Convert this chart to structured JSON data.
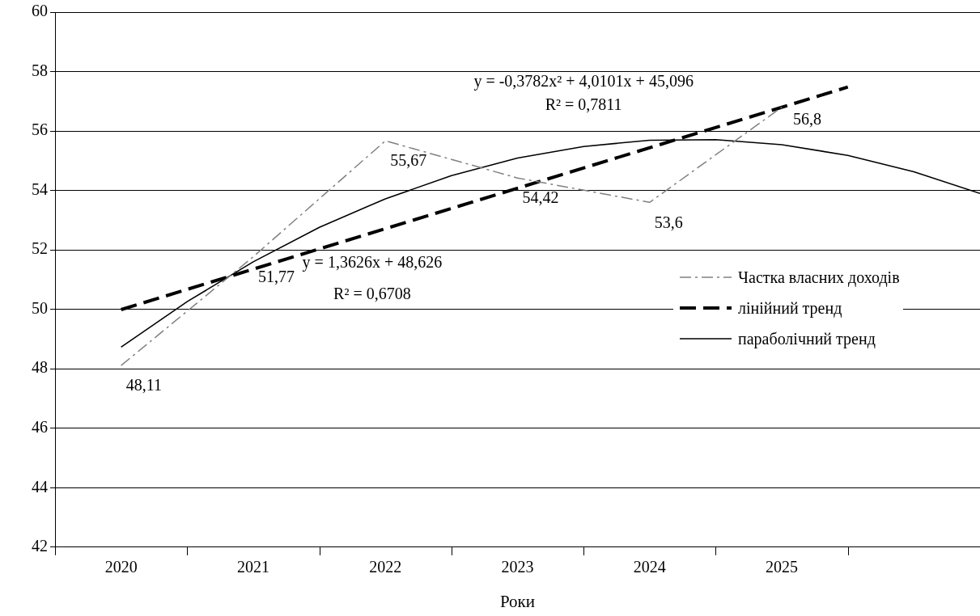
{
  "chart_data": {
    "type": "line",
    "xlabel": "Роки",
    "xlim": [
      2019.5,
      2026.5
    ],
    "xticks": [
      2020,
      2021,
      2022,
      2023,
      2024,
      2025
    ],
    "ylim": [
      42,
      60
    ],
    "yticks": [
      42,
      44,
      46,
      48,
      50,
      52,
      54,
      56,
      58,
      60
    ],
    "grid": "y",
    "legend": "right",
    "marker": "none",
    "series": [
      {
        "name": "Частка власних доходів",
        "color": "#808080",
        "line_style": "dashed",
        "x": [
          2020,
          2021,
          2022,
          2023,
          2024,
          2025
        ],
        "values": [
          48.11,
          51.77,
          55.67,
          54.42,
          53.6,
          56.8
        ],
        "value_labels": [
          "48,11",
          "51,77",
          "55,67",
          "54,42",
          "53,6",
          "56,8"
        ]
      },
      {
        "name": "лінійний тренд",
        "color": "#000000",
        "line_style": "dashed",
        "x": [
          2020,
          2025.5
        ],
        "values": [
          49.99,
          57.48
        ]
      },
      {
        "name": "параболічний тренд",
        "color": "#000000",
        "line_style": "solid",
        "x": [
          2020,
          2020.5,
          2021,
          2021.5,
          2022,
          2022.5,
          2023,
          2023.5,
          2024,
          2024.5,
          2025,
          2025.5,
          2026,
          2026.5
        ],
        "values": [
          48.73,
          50.26,
          51.6,
          52.76,
          53.72,
          54.5,
          55.09,
          55.48,
          55.69,
          55.71,
          55.54,
          55.18,
          54.63,
          53.9
        ]
      }
    ],
    "annotations": [
      "y = -0,3782x² + 4,0101x + 45,096",
      "R² = 0,7811",
      "y = 1,3626x + 48,626",
      "R² = 0,6708"
    ]
  }
}
